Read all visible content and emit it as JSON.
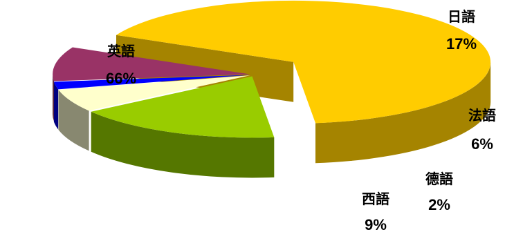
{
  "chart_data": {
    "type": "pie",
    "title": "",
    "style": "3d-exploded",
    "slices": [
      {
        "label": "英語",
        "value": 66,
        "value_label": "66%",
        "color": "#FFCC00",
        "side_color": "#A58400"
      },
      {
        "label": "日語",
        "value": 17,
        "value_label": "17%",
        "color": "#99CC00",
        "side_color": "#557700"
      },
      {
        "label": "法語",
        "value": 6,
        "value_label": "6%",
        "color": "#FFFFCC",
        "side_color": "#888870"
      },
      {
        "label": "德語",
        "value": 2,
        "value_label": "2%",
        "color": "#0000FF",
        "side_color": "#000080"
      },
      {
        "label": "西語",
        "value": 9,
        "value_label": "9%",
        "color": "#993366",
        "side_color": "#4F1A33"
      }
    ]
  }
}
